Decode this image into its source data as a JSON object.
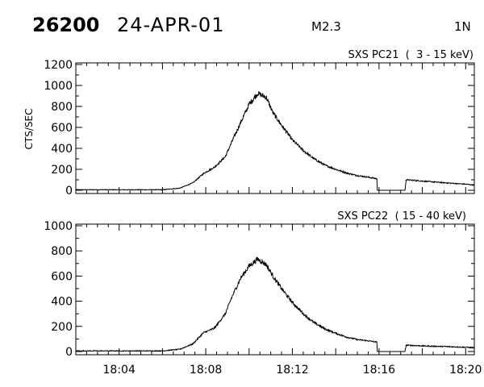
{
  "header": {
    "event_id": "26200",
    "date": "24-APR-01",
    "goes_class": "M2.3",
    "location": "1N"
  },
  "chart_data": [
    {
      "type": "line",
      "title": "SXS PC21  (  3 - 15 keV)",
      "ylabel": "CTS/SEC",
      "xlabel": "",
      "ylim": [
        0,
        1200
      ],
      "yticks": [
        0,
        200,
        400,
        600,
        800,
        1000,
        1200
      ],
      "xlim_min": [
        0,
        15.2
      ],
      "x_unit": "minutes after 18:02",
      "series": [
        {
          "x": [
            0,
            2,
            4,
            4.8,
            5.4,
            5.9,
            6.4,
            6.9,
            7.2,
            7.6,
            8.0,
            8.4,
            8.8,
            9.1,
            9.5,
            10.0,
            10.5,
            11.0,
            11.5,
            12.0,
            12.5,
            13.0,
            13.5,
            13.9,
            13.92,
            15.2
          ],
          "y": [
            5,
            5,
            5,
            20,
            70,
            160,
            220,
            320,
            460,
            640,
            820,
            925,
            885,
            740,
            620,
            480,
            380,
            300,
            240,
            200,
            165,
            140,
            125,
            110,
            0,
            0
          ]
        },
        {
          "x": [
            15.2,
            15.25,
            15.6,
            16.0,
            16.5,
            17.0,
            17.5,
            18.0,
            18.4
          ],
          "y": [
            0,
            100,
            95,
            88,
            80,
            72,
            65,
            58,
            50
          ]
        }
      ]
    },
    {
      "type": "line",
      "title": "SXS PC22  ( 15 - 40 keV)",
      "ylabel": "",
      "xlabel": "",
      "ylim": [
        0,
        1000
      ],
      "yticks": [
        0,
        200,
        400,
        600,
        800,
        1000
      ],
      "x_unit": "minutes after 18:02",
      "series": [
        {
          "x": [
            0,
            2,
            4,
            4.8,
            5.4,
            5.9,
            6.4,
            6.9,
            7.2,
            7.6,
            8.0,
            8.4,
            8.8,
            9.1,
            9.5,
            10.0,
            10.5,
            11.0,
            11.5,
            12.0,
            12.5,
            13.0,
            13.5,
            13.9,
            13.92,
            15.2
          ],
          "y": [
            5,
            5,
            5,
            18,
            60,
            150,
            185,
            300,
            430,
            580,
            680,
            735,
            690,
            600,
            500,
            390,
            300,
            230,
            180,
            145,
            115,
            95,
            85,
            75,
            0,
            0
          ]
        },
        {
          "x": [
            15.2,
            15.25,
            15.6,
            16.0,
            16.5,
            17.0,
            17.5,
            18.0,
            18.4
          ],
          "y": [
            0,
            50,
            48,
            45,
            42,
            40,
            37,
            34,
            30
          ]
        }
      ]
    }
  ],
  "x_axis": {
    "xlim": [
      0,
      18.4
    ],
    "ticks": [
      {
        "x": 2,
        "label": "18:04"
      },
      {
        "x": 6,
        "label": "18:08"
      },
      {
        "x": 10,
        "label": "18:12"
      },
      {
        "x": 14,
        "label": "18:16"
      },
      {
        "x": 18,
        "label": "18:20"
      }
    ],
    "minor_step": 0.5
  }
}
